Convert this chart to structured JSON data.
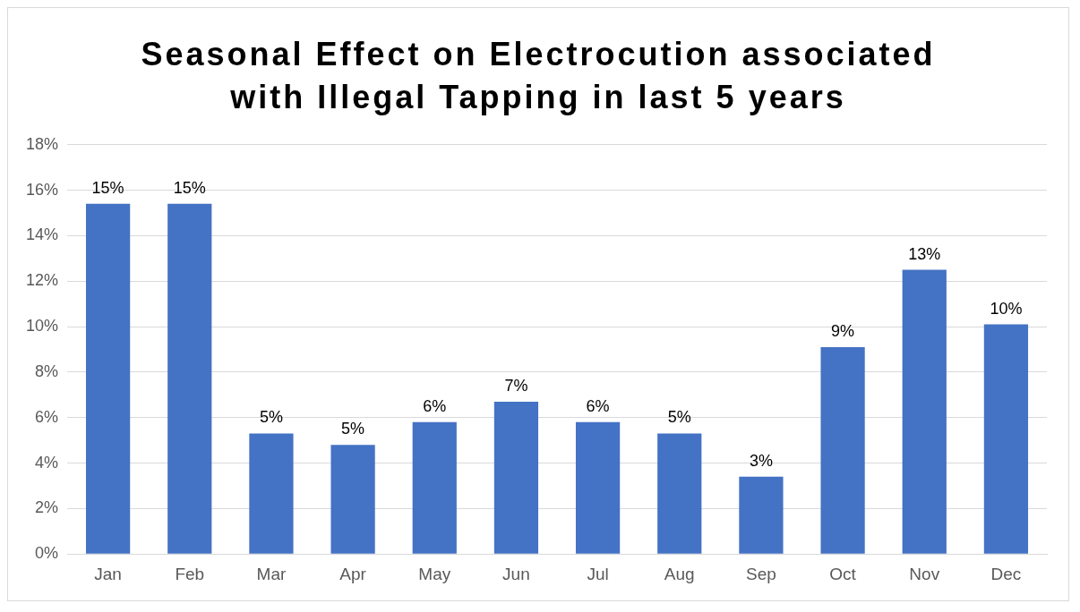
{
  "chart_data": {
    "type": "bar",
    "title": "Seasonal Effect on Electrocution associated with Illegal Tapping in last 5 years",
    "categories": [
      "Jan",
      "Feb",
      "Mar",
      "Apr",
      "May",
      "Jun",
      "Jul",
      "Aug",
      "Sep",
      "Oct",
      "Nov",
      "Dec"
    ],
    "values": [
      15.4,
      15.4,
      5.3,
      4.8,
      5.8,
      6.7,
      5.8,
      5.3,
      3.4,
      9.1,
      12.5,
      10.1
    ],
    "value_labels": [
      "15%",
      "15%",
      "5%",
      "5%",
      "6%",
      "7%",
      "6%",
      "5%",
      "3%",
      "9%",
      "13%",
      "10%"
    ],
    "color": "#4472c4",
    "ylim": [
      0,
      18
    ],
    "yticks": [
      {
        "value": 0,
        "label": "0%"
      },
      {
        "value": 2,
        "label": "2%"
      },
      {
        "value": 4,
        "label": "4%"
      },
      {
        "value": 6,
        "label": "6%"
      },
      {
        "value": 8,
        "label": "8%"
      },
      {
        "value": 10,
        "label": "10%"
      },
      {
        "value": 12,
        "label": "12%"
      },
      {
        "value": 14,
        "label": "14%"
      },
      {
        "value": 16,
        "label": "16%"
      },
      {
        "value": 18,
        "label": "18%"
      }
    ],
    "grid": "y"
  }
}
